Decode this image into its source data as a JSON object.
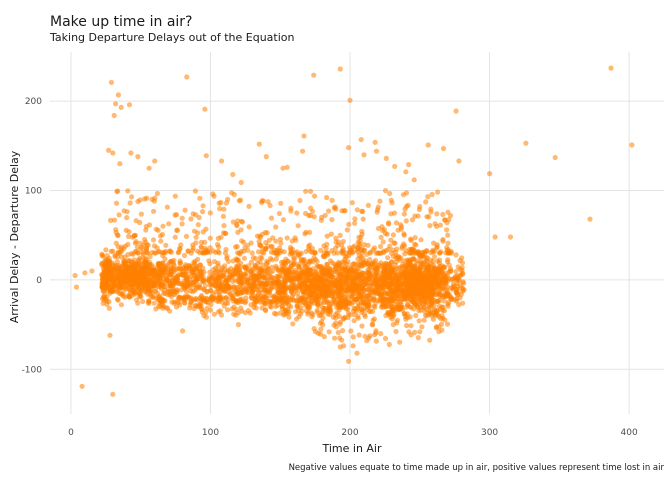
{
  "chart_data": {
    "type": "scatter",
    "title": "Make up time in air?",
    "subtitle": "Taking Departure Delays out of the Equation",
    "xlabel": "Time in Air",
    "ylabel": "Arrival Delay - Departure Delay",
    "caption": "Negative values equate to time made up in air, positive values represent time lost in air",
    "xlim": [
      -15,
      425
    ],
    "ylim": [
      -150,
      255
    ],
    "x_ticks": [
      0,
      100,
      200,
      300,
      400
    ],
    "y_ticks": [
      -100,
      0,
      100,
      200
    ],
    "x_tick_labels": [
      "0",
      "100",
      "200",
      "300",
      "400"
    ],
    "y_tick_labels": [
      "-100",
      "0",
      "100",
      "200"
    ],
    "grid": true,
    "legend": "none",
    "point_color": "#ff7f00",
    "point_opacity": 0.55,
    "dense_clusters": [
      {
        "x_center": 45,
        "x_spread": 18,
        "y_center": 3,
        "y_spread": 12
      },
      {
        "x_center": 110,
        "x_spread": 40,
        "y_center": -2,
        "y_spread": 14
      },
      {
        "x_center": 175,
        "x_spread": 30,
        "y_center": -4,
        "y_spread": 15
      },
      {
        "x_center": 215,
        "x_spread": 28,
        "y_center": -6,
        "y_spread": 18
      },
      {
        "x_center": 250,
        "x_spread": 15,
        "y_center": -2,
        "y_spread": 14
      }
    ],
    "points": [
      [
        3,
        5
      ],
      [
        4,
        -8
      ],
      [
        8,
        -119
      ],
      [
        10,
        8
      ],
      [
        15,
        10
      ],
      [
        22,
        18
      ],
      [
        29,
        221
      ],
      [
        30,
        -128
      ],
      [
        28,
        -62
      ],
      [
        31,
        184
      ],
      [
        32,
        197
      ],
      [
        34,
        207
      ],
      [
        36,
        193
      ],
      [
        42,
        196
      ],
      [
        27,
        145
      ],
      [
        30,
        142
      ],
      [
        35,
        130
      ],
      [
        43,
        142
      ],
      [
        48,
        138
      ],
      [
        56,
        125
      ],
      [
        60,
        133
      ],
      [
        83,
        227
      ],
      [
        96,
        191
      ],
      [
        97,
        139
      ],
      [
        108,
        133
      ],
      [
        116,
        118
      ],
      [
        122,
        109
      ],
      [
        135,
        152
      ],
      [
        140,
        138
      ],
      [
        152,
        125
      ],
      [
        155,
        126
      ],
      [
        166,
        144
      ],
      [
        167,
        161
      ],
      [
        174,
        229
      ],
      [
        193,
        236
      ],
      [
        200,
        201
      ],
      [
        199,
        148
      ],
      [
        210,
        140
      ],
      [
        208,
        157
      ],
      [
        218,
        154
      ],
      [
        219,
        144
      ],
      [
        226,
        136
      ],
      [
        232,
        127
      ],
      [
        240,
        121
      ],
      [
        242,
        129
      ],
      [
        246,
        112
      ],
      [
        256,
        151
      ],
      [
        267,
        147
      ],
      [
        276,
        189
      ],
      [
        278,
        133
      ],
      [
        300,
        119
      ],
      [
        304,
        48
      ],
      [
        315,
        48
      ],
      [
        326,
        153
      ],
      [
        347,
        137
      ],
      [
        372,
        68
      ],
      [
        387,
        237
      ],
      [
        402,
        151
      ],
      [
        178,
        -40
      ],
      [
        185,
        -58
      ],
      [
        193,
        -75
      ],
      [
        199,
        -91
      ],
      [
        205,
        -82
      ],
      [
        212,
        -68
      ],
      [
        222,
        -60
      ],
      [
        231,
        -50
      ],
      [
        240,
        -44
      ],
      [
        258,
        -38
      ],
      [
        80,
        -57
      ],
      [
        120,
        -50
      ],
      [
        262,
        60
      ],
      [
        268,
        67
      ],
      [
        272,
        72
      ],
      [
        270,
        50
      ],
      [
        258,
        76
      ],
      [
        250,
        82
      ],
      [
        276,
        28
      ],
      [
        279,
        12
      ],
      [
        281,
        -10
      ],
      [
        275,
        -22
      ],
      [
        266,
        -40
      ],
      [
        250,
        -58
      ]
    ]
  }
}
